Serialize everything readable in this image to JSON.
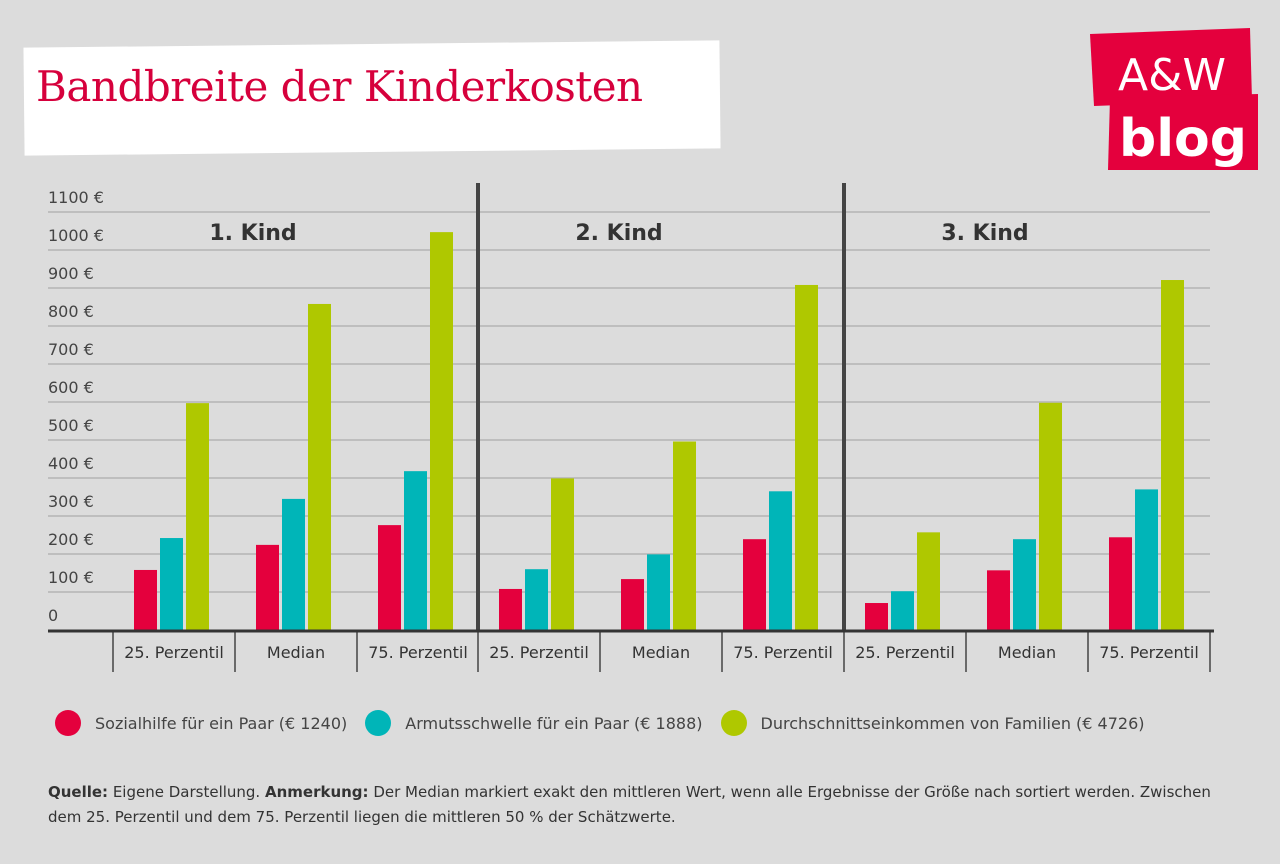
{
  "chart_data": {
    "type": "bar",
    "title": "Bandbreite der Kinderkosten",
    "ylim": [
      0,
      1100
    ],
    "yticks": [
      "0",
      "100 €",
      "200 €",
      "300 €",
      "400 €",
      "500 €",
      "600 €",
      "700 €",
      "800 €",
      "900 €",
      "1000 €",
      "1100 €"
    ],
    "grid": true,
    "legend_position": "bottom",
    "groups": [
      {
        "label": "1. Kind",
        "categories": [
          "25. Perzentil",
          "Median",
          "75. Perzentil"
        ],
        "series": [
          [
            158,
            224,
            276
          ],
          [
            242,
            345,
            418
          ],
          [
            597,
            858,
            1047
          ]
        ]
      },
      {
        "label": "2. Kind",
        "categories": [
          "25. Perzentil",
          "Median",
          "75. Perzentil"
        ],
        "series": [
          [
            108,
            134,
            239
          ],
          [
            160,
            199,
            365
          ],
          [
            399,
            496,
            908
          ]
        ]
      },
      {
        "label": "3. Kind",
        "categories": [
          "25. Perzentil",
          "Median",
          "75. Perzentil"
        ],
        "series": [
          [
            71,
            157,
            244
          ],
          [
            102,
            239,
            370
          ],
          [
            257,
            598,
            921
          ]
        ]
      }
    ],
    "series": [
      {
        "name": "Sozialhilfe für ein Paar (€ 1240)",
        "color": "#e4003d"
      },
      {
        "name": "Armutsschwelle für ein Paar (€ 1888)",
        "color": "#00b5b8"
      },
      {
        "name": "Durchschnittseinkommen von Familien (€ 4726)",
        "color": "#afc800"
      }
    ]
  },
  "logo": {
    "line1": "A&W",
    "line2": "blog",
    "color": "#e4003d"
  },
  "note": {
    "source_label": "Quelle:",
    "source_text": " Eigene Darstellung. ",
    "remark_label": "Anmerkung:",
    "remark_text": " Der Median markiert exakt den mittleren Wert, wenn alle Ergebnisse der Größe nach sortiert werden. Zwischen dem 25. Perzentil und dem 75. Perzentil liegen die mittleren 50 % der Schätzwerte."
  }
}
